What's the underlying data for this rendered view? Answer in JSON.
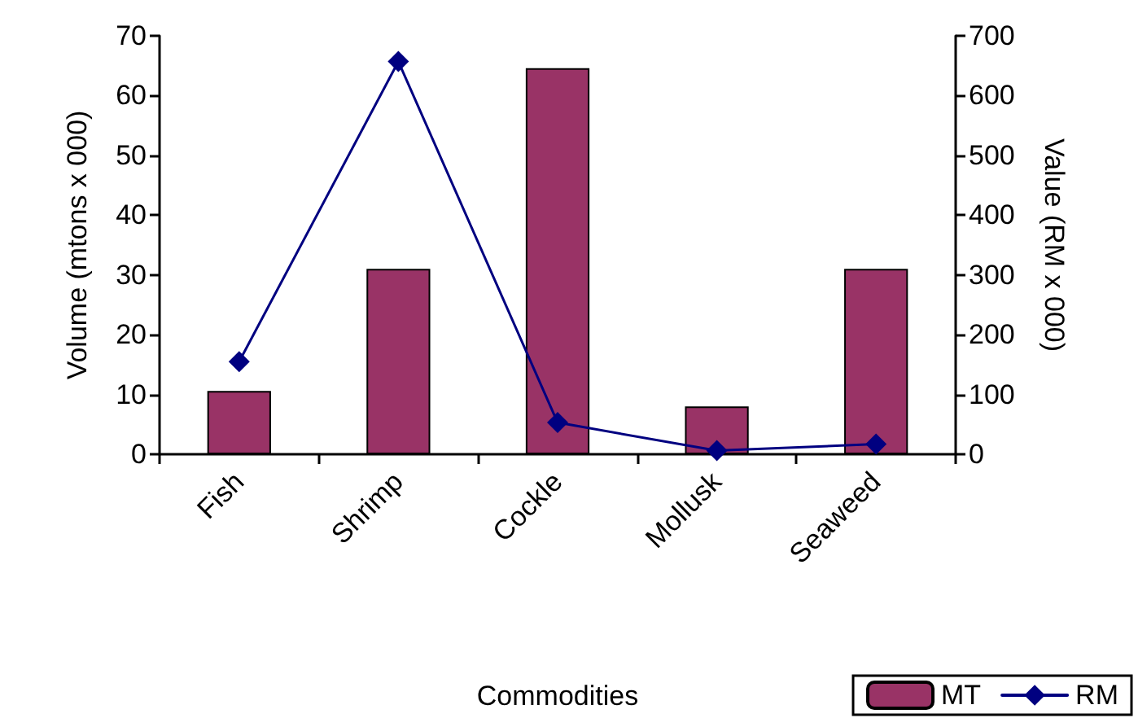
{
  "chart_data": {
    "type": "bar",
    "xlabel": "Commodities",
    "ylabel": "Volume (mtons x 000)",
    "y2label": "Value (RM x 000)",
    "categories": [
      "Fish",
      "Shrimp",
      "Cockle",
      "Mollusk",
      "Seaweed"
    ],
    "series": [
      {
        "name": "MT",
        "color": "#993366",
        "values": [
          10.6,
          31,
          64.6,
          8,
          31
        ]
      },
      {
        "name": "RM",
        "type": "line",
        "axis": "y2",
        "color": "#000080",
        "marker": "diamond",
        "values": [
          155,
          657,
          53,
          6,
          17
        ]
      }
    ],
    "ylim": [
      0,
      70
    ],
    "yticks": [
      0,
      10,
      20,
      30,
      40,
      50,
      60,
      70
    ],
    "y2lim": [
      0,
      700
    ],
    "y2ticks": [
      0,
      100,
      200,
      300,
      400,
      500,
      600,
      700
    ],
    "grid": false,
    "legend": "bottom right"
  }
}
